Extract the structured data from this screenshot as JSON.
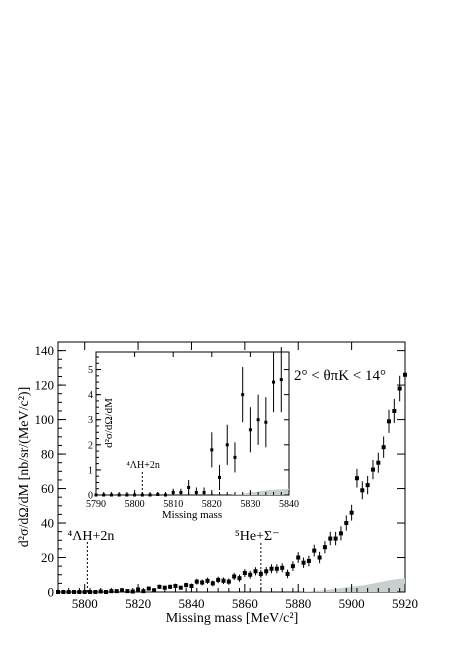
{
  "chart_data": [
    {
      "type": "scatter",
      "title": "",
      "xlabel": "Missing mass [MeV/c²]",
      "ylabel": "d²σ/dΩ/dM [nb/sr/(MeV/c²)]",
      "xlim": [
        5790,
        5920
      ],
      "ylim": [
        0,
        145
      ],
      "xticks": [
        5800,
        5820,
        5840,
        5860,
        5880,
        5900,
        5920
      ],
      "yticks": [
        0,
        20,
        40,
        60,
        80,
        100,
        120,
        140
      ],
      "angle_label": "2° < θπK < 14°",
      "annotations": [
        {
          "text": "⁴ΛH+2n",
          "x": 5801
        },
        {
          "text": "⁵He+Σ⁻",
          "x": 5866
        }
      ],
      "series": [
        {
          "x": [
            5790,
            5792,
            5794,
            5796,
            5798,
            5800,
            5802,
            5804,
            5806,
            5808,
            5810,
            5812,
            5814,
            5816,
            5818,
            5820,
            5822,
            5824,
            5826,
            5828,
            5830,
            5832,
            5834,
            5836,
            5838,
            5840,
            5842,
            5844,
            5846,
            5848,
            5850,
            5852,
            5854,
            5856,
            5858,
            5860,
            5862,
            5864,
            5866,
            5868,
            5870,
            5872,
            5874,
            5876,
            5878,
            5880,
            5882,
            5884,
            5886,
            5888,
            5890,
            5892,
            5894,
            5896,
            5898,
            5900,
            5902,
            5904,
            5906,
            5908,
            5910,
            5912,
            5914,
            5916,
            5918,
            5920
          ],
          "y": [
            0,
            0,
            0,
            0,
            0,
            0,
            0,
            0,
            0.3,
            0,
            0.5,
            0.5,
            1,
            0.5,
            0.3,
            1.5,
            0.5,
            2,
            1,
            3,
            2.5,
            3,
            3.5,
            2.5,
            4,
            3.5,
            6,
            5.5,
            6.5,
            5,
            7,
            6.5,
            6,
            9,
            8,
            11,
            10,
            12,
            10.5,
            12,
            13.5,
            13.5,
            14,
            10.5,
            15,
            20,
            17,
            18,
            24,
            20,
            26,
            31,
            31,
            34,
            40,
            46,
            66,
            59,
            62,
            71,
            75,
            84,
            99,
            105,
            118,
            126
          ],
          "err": [
            0.3,
            0.3,
            0.3,
            0.3,
            0.3,
            0.3,
            0.3,
            0.3,
            0.5,
            0.3,
            0.5,
            0.5,
            0.8,
            0.5,
            0.5,
            1,
            0.8,
            1,
            1,
            1.2,
            1.2,
            1.2,
            1.3,
            1.2,
            1.4,
            1.4,
            1.7,
            1.7,
            1.8,
            1.7,
            1.9,
            1.9,
            1.8,
            2.1,
            2.1,
            2.3,
            2.3,
            2.4,
            2.3,
            2.5,
            2.6,
            2.6,
            2.6,
            2.5,
            2.8,
            3.1,
            3,
            3.1,
            3.4,
            3.3,
            3.5,
            3.9,
            3.9,
            4.1,
            4.4,
            4.6,
            5.4,
            5.2,
            5.3,
            5.6,
            5.8,
            6.2,
            6.7,
            7,
            7.4,
            7.7
          ]
        }
      ],
      "background_band": {
        "x": [
          5880,
          5885,
          5890,
          5895,
          5900,
          5905,
          5910,
          5915,
          5920
        ],
        "y": [
          0,
          0.5,
          1,
          2,
          3,
          4,
          5.5,
          7,
          8
        ]
      }
    },
    {
      "type": "scatter",
      "title": "",
      "xlabel": "Missing mass",
      "ylabel": "d²σ/dΩ/dM",
      "xlim": [
        5790,
        5840
      ],
      "ylim": [
        0,
        5.7
      ],
      "xticks": [
        5790,
        5800,
        5810,
        5820,
        5830,
        5840
      ],
      "yticks": [
        0,
        1,
        2,
        3,
        4,
        5
      ],
      "annotations": [
        {
          "text": "⁴ΛH+2n",
          "x": 5802
        }
      ],
      "series": [
        {
          "x": [
            5790,
            5792,
            5794,
            5796,
            5798,
            5800,
            5802,
            5804,
            5806,
            5808,
            5810,
            5812,
            5814,
            5816,
            5818,
            5820,
            5822,
            5824,
            5826,
            5828,
            5830,
            5832,
            5834,
            5836,
            5838
          ],
          "y": [
            0,
            0,
            0,
            0,
            0,
            0,
            0,
            0,
            0.02,
            0,
            0.1,
            0.1,
            0.3,
            0.1,
            0.1,
            1.8,
            0.7,
            2,
            1.5,
            4,
            2.6,
            3,
            2.9,
            4.5,
            4.6
          ],
          "err": [
            0.05,
            0.05,
            0.05,
            0.05,
            0.05,
            0.05,
            0.05,
            0.05,
            0.1,
            0.05,
            0.15,
            0.15,
            0.3,
            0.2,
            0.2,
            0.7,
            0.5,
            0.8,
            0.6,
            1.1,
            0.9,
            1,
            1,
            1.2,
            1.3
          ]
        }
      ],
      "background_band": {
        "x": [
          5825,
          5830,
          5835,
          5840
        ],
        "y": [
          0,
          0.1,
          0.2,
          0.25
        ]
      }
    }
  ]
}
